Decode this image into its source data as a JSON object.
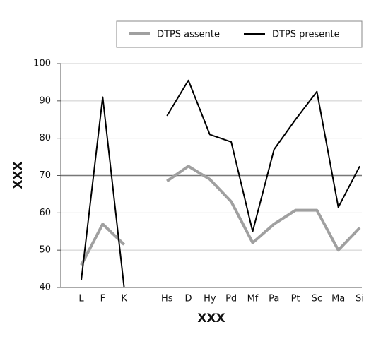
{
  "chart_data": {
    "type": "line",
    "categories": [
      "L",
      "F",
      "K",
      null,
      "Hs",
      "D",
      "Hy",
      "Pd",
      "Mf",
      "Pa",
      "Pt",
      "Sc",
      "Ma",
      "Si"
    ],
    "series": [
      {
        "name": "DTPS assente",
        "color": "#a0a0a0",
        "width": 4,
        "values": [
          46,
          57,
          51.5,
          null,
          68.5,
          72.5,
          69,
          63,
          52,
          57,
          60.7,
          60.7,
          50,
          56
        ]
      },
      {
        "name": "DTPS presente",
        "color": "#000000",
        "width": 2,
        "values": [
          42,
          91,
          40,
          null,
          86,
          95.5,
          81,
          79,
          55,
          77,
          85,
          92.5,
          61.5,
          72.5
        ]
      }
    ],
    "xlabel": "XXX",
    "ylabel": "XXX",
    "ylim": [
      40,
      100
    ],
    "yticks": [
      40,
      50,
      60,
      70,
      80,
      90,
      100
    ],
    "reference_line": 70,
    "grid": true,
    "legend": "top-right"
  }
}
